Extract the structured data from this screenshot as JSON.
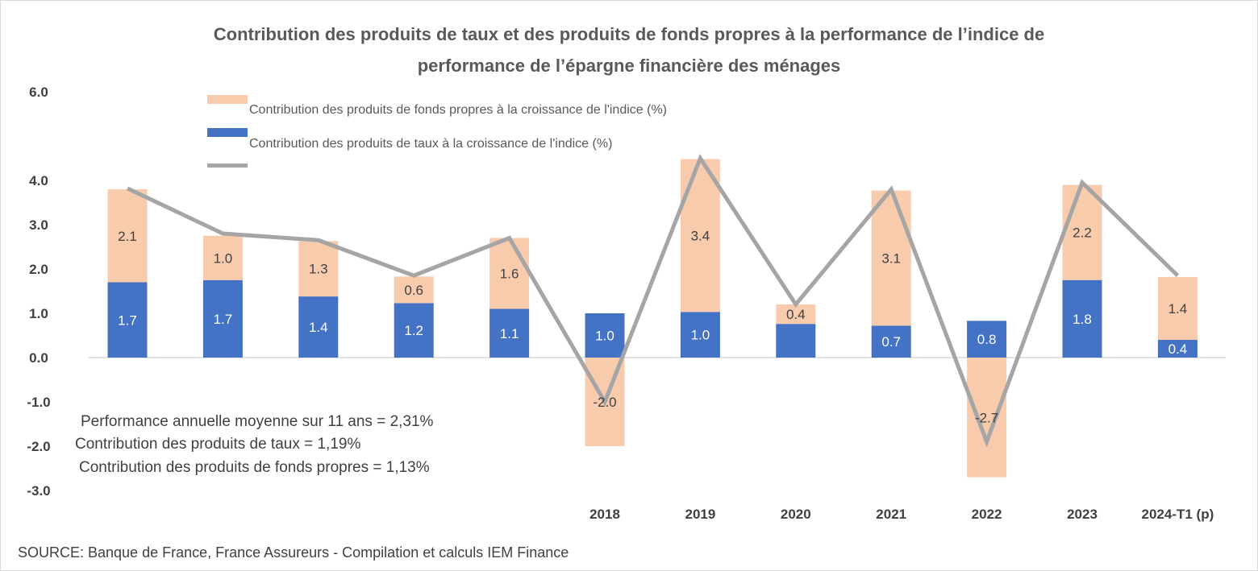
{
  "chart_data": {
    "type": "bar",
    "stacked": true,
    "title": "Contribution des produits de taux et des produits de fonds propres à la performance de l’indice de performance de l’épargne financière des ménages",
    "title_lines": [
      "Contribution des produits de taux et des produits de fonds propres à la performance de l’indice de",
      "performance de l’épargne financière des ménages"
    ],
    "categories": [
      "",
      "",
      "",
      "",
      "",
      "2018",
      "2019",
      "2020",
      "2021",
      "2022",
      "2023",
      "2024-T1 (p)"
    ],
    "series": [
      {
        "name": "Contribution des produits de taux à la croissance de l'indice (%)",
        "type": "bar",
        "color": "#4472c4",
        "values": [
          1.7,
          1.75,
          1.38,
          1.23,
          1.1,
          1.0,
          1.03,
          0.76,
          0.72,
          0.83,
          1.75,
          0.4
        ],
        "labels": [
          "1.7",
          "1.7",
          "1.4",
          "1.2",
          "1.1",
          "1.0",
          "1.0",
          "",
          "0.7",
          "0.8",
          "1.8",
          "0.4"
        ]
      },
      {
        "name": "Contribution des produits de fonds propres à la croissance de l'indice (%)",
        "type": "bar",
        "color": "#f8cbad",
        "values": [
          2.1,
          1.0,
          1.25,
          0.6,
          1.6,
          -2.0,
          3.45,
          0.44,
          3.05,
          -2.7,
          2.15,
          1.42
        ],
        "labels": [
          "2.1",
          "1.0",
          "1.3",
          "0.6",
          "1.6",
          "-2.0",
          "3.4",
          "0.4",
          "3.1",
          "-2.7",
          "2.2",
          "1.4"
        ]
      },
      {
        "name": "",
        "type": "line",
        "color": "#a5a5a5",
        "values": [
          3.82,
          2.8,
          2.65,
          1.85,
          2.7,
          -1.0,
          4.5,
          1.2,
          3.8,
          -1.9,
          3.95,
          1.85
        ]
      }
    ],
    "yticks": [
      "6.0",
      "4.0",
      "3.0",
      "2.0",
      "1.0",
      "0.0",
      "-1.0",
      "-2.0",
      "-3.0"
    ],
    "ytick_values": [
      6,
      4,
      3,
      2,
      1,
      0,
      -1,
      -2,
      -3
    ],
    "ylim": [
      -3,
      6
    ],
    "grid": false,
    "legend_position": "top",
    "annotations": [
      "Performance annuelle  moyenne sur 11 ans = 2,31%",
      "Contribution  des produits de taux = 1,19%",
      "Contribution  des produits de fonds propres = 1,13%"
    ],
    "source": "SOURCE: Banque de France, France Assureurs - Compilation  et calculs IEM Finance"
  }
}
